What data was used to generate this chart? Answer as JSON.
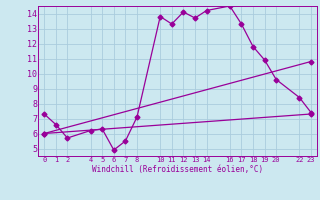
{
  "xlabel": "Windchill (Refroidissement éolien,°C)",
  "bg_color": "#cce8f0",
  "grid_color": "#aaccdd",
  "line_color": "#990099",
  "x_ticks": [
    0,
    1,
    2,
    4,
    5,
    6,
    7,
    8,
    10,
    11,
    12,
    13,
    14,
    16,
    17,
    18,
    19,
    20,
    22,
    23
  ],
  "ylim": [
    4.5,
    14.5
  ],
  "xlim": [
    -0.5,
    23.5
  ],
  "yticks": [
    5,
    6,
    7,
    8,
    9,
    10,
    11,
    12,
    13,
    14
  ],
  "series1_x": [
    0,
    1,
    2,
    4,
    5,
    6,
    7,
    8,
    10,
    11,
    12,
    13,
    14,
    16,
    17,
    18,
    19,
    20,
    22,
    23
  ],
  "series1_y": [
    7.3,
    6.6,
    5.7,
    6.2,
    6.3,
    4.9,
    5.5,
    7.1,
    13.8,
    13.3,
    14.1,
    13.7,
    14.2,
    14.5,
    13.3,
    11.8,
    10.9,
    9.6,
    8.4,
    7.4
  ],
  "series2_x": [
    0,
    23
  ],
  "series2_y": [
    6.0,
    7.3
  ],
  "series3_x": [
    0,
    23
  ],
  "series3_y": [
    6.0,
    10.8
  ]
}
